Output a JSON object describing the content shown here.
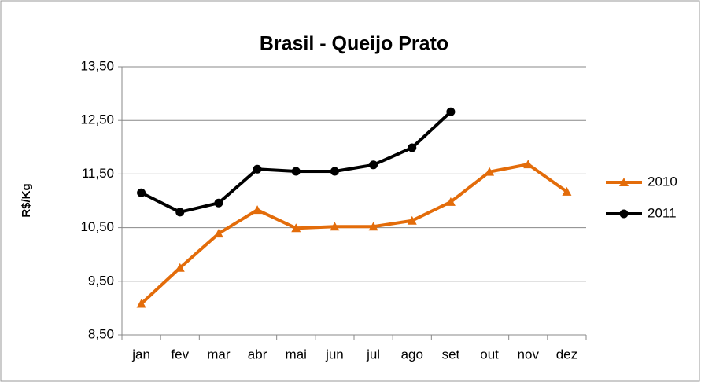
{
  "chart_data": {
    "type": "line",
    "title": "Brasil - Queijo Prato",
    "y_label": "R$/Kg",
    "categories": [
      "jan",
      "fev",
      "mar",
      "abr",
      "mai",
      "jun",
      "jul",
      "ago",
      "set",
      "out",
      "nov",
      "dez"
    ],
    "series": [
      {
        "name": "2010",
        "color": "#e36c0a",
        "marker": "triangle",
        "values": [
          9.08,
          9.75,
          10.39,
          10.83,
          10.49,
          10.52,
          10.52,
          10.63,
          10.98,
          11.54,
          11.68,
          11.17
        ]
      },
      {
        "name": "2011",
        "color": "#000000",
        "marker": "circle",
        "values": [
          11.15,
          10.79,
          10.96,
          11.59,
          11.55,
          11.55,
          11.67,
          11.99,
          12.66,
          null,
          null,
          null
        ]
      }
    ],
    "ylim": [
      8.5,
      13.5
    ],
    "yticks": [
      {
        "value": 8.5,
        "label": "8,50"
      },
      {
        "value": 9.5,
        "label": "9,50"
      },
      {
        "value": 10.5,
        "label": "10,50"
      },
      {
        "value": 11.5,
        "label": "11,50"
      },
      {
        "value": 12.5,
        "label": "12,50"
      },
      {
        "value": 13.5,
        "label": "13,50"
      }
    ],
    "grid": true,
    "legend": "right"
  }
}
